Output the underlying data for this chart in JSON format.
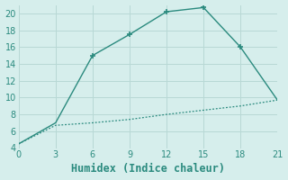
{
  "xlabel": "Humidex (Indice chaleur)",
  "line1_x": [
    0,
    3,
    6,
    9,
    12,
    15,
    18,
    21
  ],
  "line1_y": [
    4.5,
    7.0,
    15.0,
    17.5,
    20.2,
    20.7,
    16.0,
    9.7
  ],
  "line1_marker_x": [
    6,
    9,
    12,
    15,
    18
  ],
  "line1_marker_y": [
    15.0,
    17.5,
    20.2,
    20.7,
    16.0
  ],
  "line2_x": [
    0,
    3,
    6,
    9,
    12,
    15,
    18,
    21
  ],
  "line2_y": [
    4.5,
    6.7,
    7.0,
    7.4,
    8.0,
    8.5,
    9.0,
    9.7
  ],
  "line_color": "#2a8a7e",
  "bg_color": "#d6eeec",
  "grid_color": "#b8d8d5",
  "tick_color": "#2a8a7e",
  "label_color": "#2a8a7e",
  "xlim": [
    0,
    21
  ],
  "ylim": [
    4,
    21
  ],
  "xticks": [
    0,
    3,
    6,
    9,
    12,
    15,
    18,
    21
  ],
  "yticks": [
    4,
    6,
    8,
    10,
    12,
    14,
    16,
    18,
    20
  ],
  "xlabel_fontsize": 8.5
}
